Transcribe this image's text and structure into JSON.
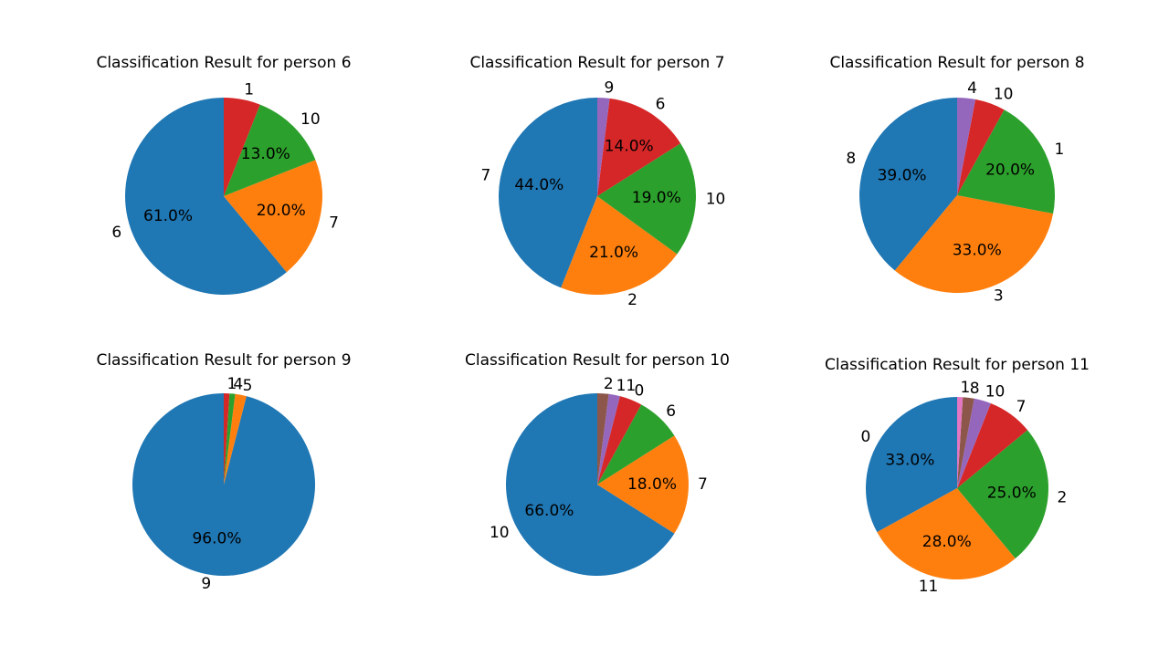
{
  "palette": [
    "#1f77b4",
    "#ff7f0e",
    "#2ca02c",
    "#d62728",
    "#9467bd",
    "#8c564b",
    "#e377c2"
  ],
  "chart_data": [
    {
      "type": "pie",
      "title": "Classification Result for person 6",
      "labels": [
        "6",
        "7",
        "10",
        "1"
      ],
      "values": [
        61,
        20,
        13,
        6
      ],
      "pct_labels": [
        "61.0%",
        "20.0%",
        "13.0%",
        ""
      ],
      "start_angle": 90,
      "direction": "counterclockwise"
    },
    {
      "type": "pie",
      "title": "Classification Result for person 7",
      "labels": [
        "7",
        "2",
        "10",
        "6",
        "9"
      ],
      "values": [
        44,
        21,
        19,
        14,
        2
      ],
      "pct_labels": [
        "44.0%",
        "21.0%",
        "19.0%",
        "14.0%",
        ""
      ],
      "start_angle": 90,
      "direction": "counterclockwise"
    },
    {
      "type": "pie",
      "title": "Classification Result for person 8",
      "labels": [
        "8",
        "3",
        "1",
        "10",
        "4"
      ],
      "values": [
        39,
        33,
        20,
        5,
        3
      ],
      "pct_labels": [
        "39.0%",
        "33.0%",
        "20.0%",
        "",
        ""
      ],
      "start_angle": 90,
      "direction": "counterclockwise"
    },
    {
      "type": "pie",
      "title": "Classification Result for person 9",
      "labels": [
        "9",
        "5",
        "4",
        "1"
      ],
      "values": [
        96,
        2,
        1,
        1
      ],
      "pct_labels": [
        "96.0%",
        "",
        "",
        ""
      ],
      "start_angle": 90,
      "direction": "counterclockwise"
    },
    {
      "type": "pie",
      "title": "Classification Result for person 10",
      "labels": [
        "10",
        "7",
        "6",
        "0",
        "11",
        "2"
      ],
      "values": [
        66,
        18,
        8,
        4,
        2,
        2
      ],
      "pct_labels": [
        "66.0%",
        "18.0%",
        "",
        "",
        "",
        ""
      ],
      "start_angle": 90,
      "direction": "counterclockwise"
    },
    {
      "type": "pie",
      "title": "Classification Result for person 11",
      "labels": [
        "0",
        "11",
        "2",
        "7",
        "10",
        "8",
        "1"
      ],
      "values": [
        33,
        28,
        25,
        8,
        3,
        2,
        1
      ],
      "pct_labels": [
        "33.0%",
        "28.0%",
        "25.0%",
        "",
        "",
        "",
        ""
      ],
      "start_angle": 90,
      "direction": "counterclockwise"
    }
  ]
}
